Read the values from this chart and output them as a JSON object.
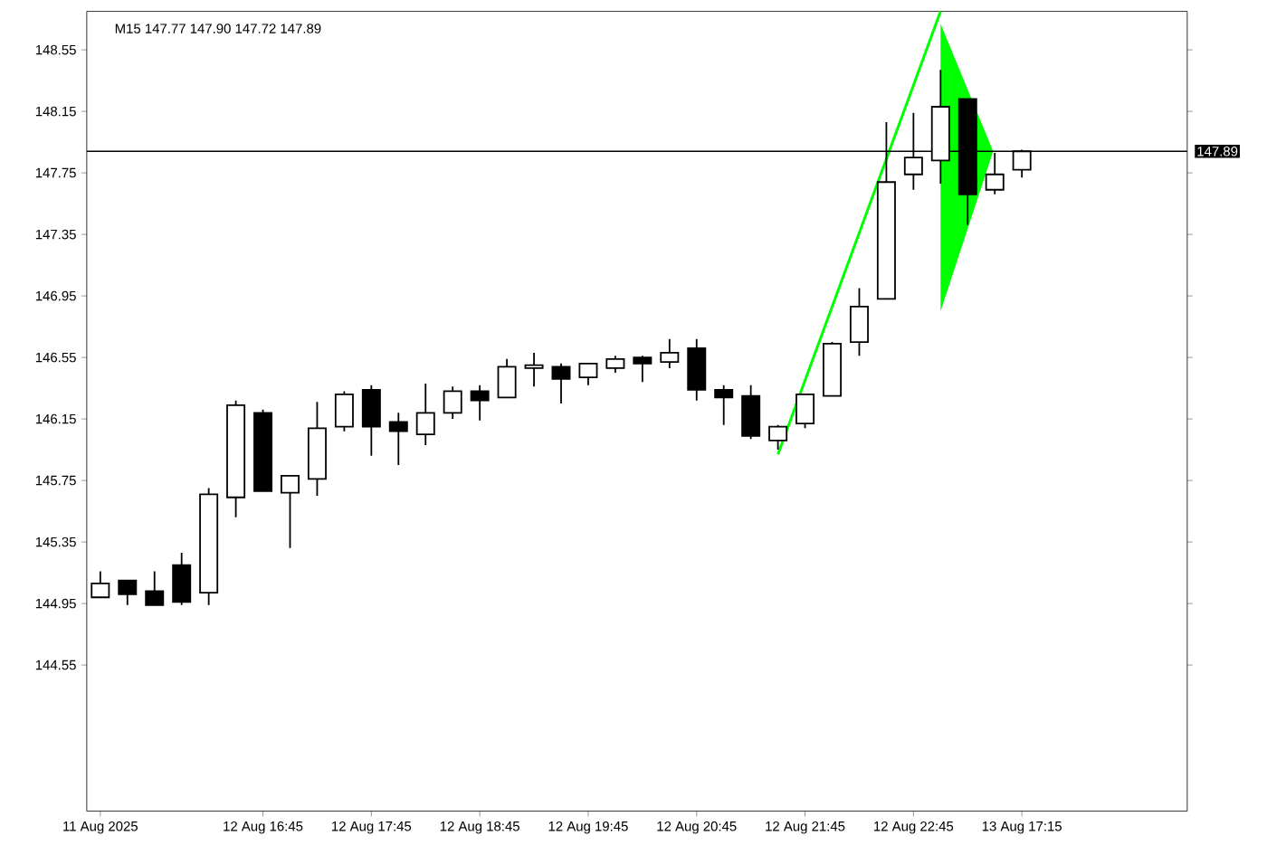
{
  "chart_data": {
    "type": "candlestick",
    "title": "M15  147.77 147.90 147.72 147.89",
    "categories": [
      "11 Aug 2025",
      null,
      null,
      null,
      null,
      null,
      "12 Aug 16:45",
      null,
      null,
      null,
      "12 Aug 17:45",
      null,
      null,
      null,
      "12 Aug 18:45",
      null,
      null,
      null,
      "12 Aug 19:45",
      null,
      null,
      null,
      "12 Aug 20:45",
      null,
      null,
      null,
      "12 Aug 21:45",
      null,
      null,
      null,
      "12 Aug 22:45",
      null,
      null,
      null,
      "13 Aug 17:15"
    ],
    "ohlc": [
      [
        144.99,
        145.16,
        144.99,
        145.08
      ],
      [
        145.1,
        145.1,
        144.94,
        145.01
      ],
      [
        145.03,
        145.16,
        144.94,
        144.94
      ],
      [
        145.2,
        145.28,
        144.94,
        144.96
      ],
      [
        145.02,
        145.7,
        144.94,
        145.66
      ],
      [
        145.64,
        146.27,
        145.51,
        146.24
      ],
      [
        146.19,
        146.21,
        145.68,
        145.68
      ],
      [
        145.67,
        145.78,
        145.31,
        145.78
      ],
      [
        145.76,
        146.26,
        145.65,
        146.09
      ],
      [
        146.1,
        146.33,
        146.07,
        146.31
      ],
      [
        146.34,
        146.37,
        145.91,
        146.1
      ],
      [
        146.13,
        146.19,
        145.85,
        146.07
      ],
      [
        146.05,
        146.38,
        145.98,
        146.19
      ],
      [
        146.19,
        146.36,
        146.15,
        146.33
      ],
      [
        146.33,
        146.37,
        146.14,
        146.27
      ],
      [
        146.29,
        146.54,
        146.29,
        146.49
      ],
      [
        146.48,
        146.58,
        146.36,
        146.5
      ],
      [
        146.49,
        146.51,
        146.25,
        146.41
      ],
      [
        146.42,
        146.51,
        146.37,
        146.51
      ],
      [
        146.48,
        146.56,
        146.45,
        146.54
      ],
      [
        146.55,
        146.56,
        146.39,
        146.51
      ],
      [
        146.52,
        146.67,
        146.48,
        146.58
      ],
      [
        146.61,
        146.67,
        146.27,
        146.34
      ],
      [
        146.34,
        146.37,
        146.11,
        146.29
      ],
      [
        146.3,
        146.37,
        146.02,
        146.04
      ],
      [
        146.01,
        146.11,
        145.95,
        146.1
      ],
      [
        146.12,
        146.31,
        146.09,
        146.31
      ],
      [
        146.3,
        146.65,
        146.3,
        146.64
      ],
      [
        146.65,
        147.0,
        146.56,
        146.88
      ],
      [
        146.93,
        148.08,
        146.93,
        147.69
      ],
      [
        147.74,
        148.14,
        147.64,
        147.85
      ],
      [
        147.83,
        148.42,
        147.68,
        148.18
      ],
      [
        148.23,
        148.23,
        147.41,
        147.61
      ],
      [
        147.64,
        147.88,
        147.61,
        147.74
      ],
      [
        147.77,
        147.9,
        147.72,
        147.89
      ]
    ],
    "series": [
      {
        "type": "line",
        "color": "#00ff00",
        "values": [
          null,
          null,
          null,
          null,
          null,
          null,
          null,
          null,
          null,
          null,
          null,
          null,
          null,
          null,
          null,
          null,
          null,
          null,
          null,
          null,
          null,
          null,
          null,
          null,
          null,
          145.92,
          146.4,
          146.88,
          147.36,
          147.84,
          148.32,
          148.8,
          null,
          null,
          null
        ]
      }
    ],
    "ylim": [
      143.6,
      148.8
    ],
    "yticks": [
      144.55,
      144.95,
      145.35,
      145.75,
      146.15,
      146.55,
      146.95,
      147.35,
      147.75,
      148.15,
      148.55
    ],
    "ref_lines": [
      {
        "axis": "y",
        "value": 147.89,
        "label": "147.89",
        "color": "#000000"
      }
    ]
  }
}
